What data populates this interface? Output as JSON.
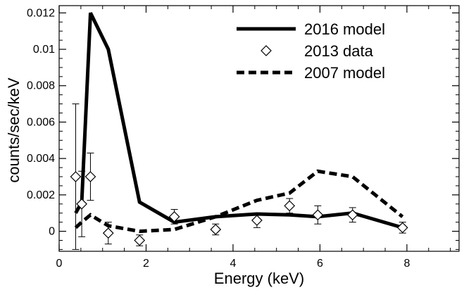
{
  "chart_data": {
    "type": "line",
    "xlabel": "Energy (keV)",
    "ylabel": "counts/sec/keV",
    "xlim": [
      0,
      9.2
    ],
    "ylim": [
      -0.0011,
      0.0124
    ],
    "x_ticks": [
      0,
      2,
      4,
      6,
      8
    ],
    "x_tick_labels": [
      "0",
      "2",
      "4",
      "6",
      "8"
    ],
    "y_ticks": [
      0,
      0.002,
      0.004,
      0.006,
      0.008,
      0.01,
      0.012
    ],
    "y_tick_labels": [
      "0",
      "0.002",
      "0.004",
      "0.006",
      "0.008",
      "0.01",
      "0.012"
    ],
    "grid": false,
    "legend_position": "top-right",
    "series": [
      {
        "name": "2016 model",
        "style": "solid",
        "color": "#000000",
        "points": [
          [
            0.38,
            0.001
          ],
          [
            0.52,
            0.0016
          ],
          [
            0.72,
            0.012
          ],
          [
            1.13,
            0.01
          ],
          [
            1.85,
            0.0016
          ],
          [
            2.65,
            0.0005
          ],
          [
            3.6,
            0.0008
          ],
          [
            4.55,
            0.00095
          ],
          [
            5.3,
            0.0009
          ],
          [
            5.95,
            0.0008
          ],
          [
            6.75,
            0.001
          ],
          [
            7.9,
            0.0002
          ]
        ]
      },
      {
        "name": "2013 data",
        "style": "markers",
        "marker": "diamond",
        "color": "#000000",
        "points": [
          {
            "x": 0.38,
            "y": 0.003,
            "err": 0.004
          },
          {
            "x": 0.52,
            "y": 0.0015,
            "err": 0.0018
          },
          {
            "x": 0.72,
            "y": 0.003,
            "err": 0.0013
          },
          {
            "x": 1.13,
            "y": -0.0001,
            "err": 0.0006
          },
          {
            "x": 1.85,
            "y": -0.0005,
            "err": 0.0003
          },
          {
            "x": 2.65,
            "y": 0.0008,
            "err": 0.0004
          },
          {
            "x": 3.6,
            "y": 0.0001,
            "err": 0.0003
          },
          {
            "x": 4.55,
            "y": 0.0006,
            "err": 0.0004
          },
          {
            "x": 5.3,
            "y": 0.0014,
            "err": 0.0004
          },
          {
            "x": 5.95,
            "y": 0.0009,
            "err": 0.0005
          },
          {
            "x": 6.75,
            "y": 0.0009,
            "err": 0.0004
          },
          {
            "x": 7.9,
            "y": 0.0002,
            "err": 0.0003
          }
        ]
      },
      {
        "name": "2007 model",
        "style": "dashed",
        "color": "#000000",
        "points": [
          [
            0.38,
            0.0002
          ],
          [
            0.52,
            0.0005
          ],
          [
            0.72,
            0.0009
          ],
          [
            1.13,
            0.0003
          ],
          [
            1.85,
            0.0
          ],
          [
            2.65,
            0.0001
          ],
          [
            3.6,
            0.0008
          ],
          [
            4.55,
            0.0017
          ],
          [
            5.3,
            0.0021
          ],
          [
            5.95,
            0.0033
          ],
          [
            6.75,
            0.003
          ],
          [
            7.9,
            0.0008
          ]
        ]
      }
    ]
  }
}
